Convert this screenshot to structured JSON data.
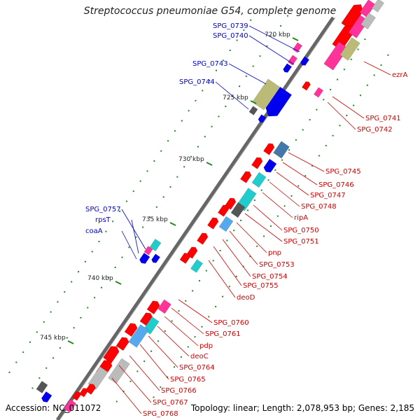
{
  "title": "Streptococcus pneumoniae G54, complete genome",
  "footer": {
    "accession": "Accession: NC_011072",
    "summary": "Topology: linear; Length: 2,078,953 bp; Genes: 2,185"
  },
  "scale_labels": [
    "720 kbp",
    "725 kbp",
    "730 kbp",
    "735 kbp",
    "740 kbp",
    "745 kbp"
  ],
  "labels_blue": [
    "SPG_0739",
    "SPG_0740",
    "SPG_0743",
    "SPG_0744",
    "SPG_0757",
    "rpsT",
    "coaA"
  ],
  "labels_red": [
    "ezrA",
    "SPG_0741",
    "SPG_0742",
    "SPG_0745",
    "SPG_0746",
    "SPG_0747",
    "SPG_0748",
    "ripA",
    "SPG_0750",
    "SPG_0751",
    "pnp",
    "SPG_0753",
    "SPG_0754",
    "SPG_0755",
    "deoD",
    "SPG_0760",
    "SPG_0761",
    "pdp",
    "deoC",
    "SPG_0764",
    "SPG_0765",
    "SPG_0766",
    "SPG_0767",
    "SPG_0768"
  ],
  "colors": {
    "forward_gene": "#ff0000",
    "reverse_gene": "#0000ee",
    "pink": "#ff3399",
    "cyan": "#22cccc",
    "light_blue": "#55aaee",
    "steel_blue": "#4477aa",
    "khaki": "#bbbb77",
    "grey": "#bbbbbb",
    "dark_grey": "#555555",
    "tick_green": "#228822",
    "label_blue": "#0000cc",
    "label_red": "#cc0000"
  }
}
